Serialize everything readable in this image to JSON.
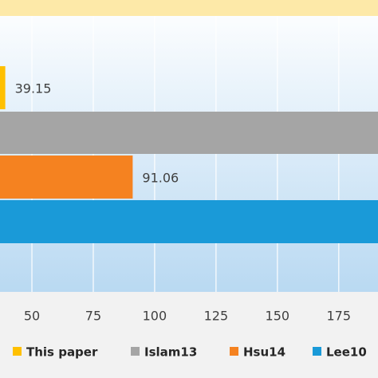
{
  "chart_data": {
    "type": "hbar",
    "categories": [
      "This paper",
      "Islam13",
      "Hsu14",
      "Lee10"
    ],
    "series": [
      {
        "name": "This paper",
        "color": "#ffc000",
        "values": [
          39.15,
          null,
          null,
          null
        ],
        "value_labels": [
          "39.15",
          null,
          null,
          null
        ]
      },
      {
        "name": "Islam13",
        "color": "#a5a5a5",
        "values": [
          null,
          200,
          null,
          null
        ]
      },
      {
        "name": "Hsu14",
        "color": "#f58220",
        "values": [
          null,
          null,
          91.06,
          null
        ],
        "value_labels": [
          null,
          null,
          "91.06",
          null
        ]
      },
      {
        "name": "Lee10",
        "color": "#1a9ad8",
        "values": [
          null,
          null,
          null,
          200
        ]
      }
    ],
    "xlim": [
      37,
      191
    ],
    "xticks": [
      50,
      75,
      100,
      125,
      150,
      175
    ],
    "grid": true,
    "legend": "bottom"
  }
}
